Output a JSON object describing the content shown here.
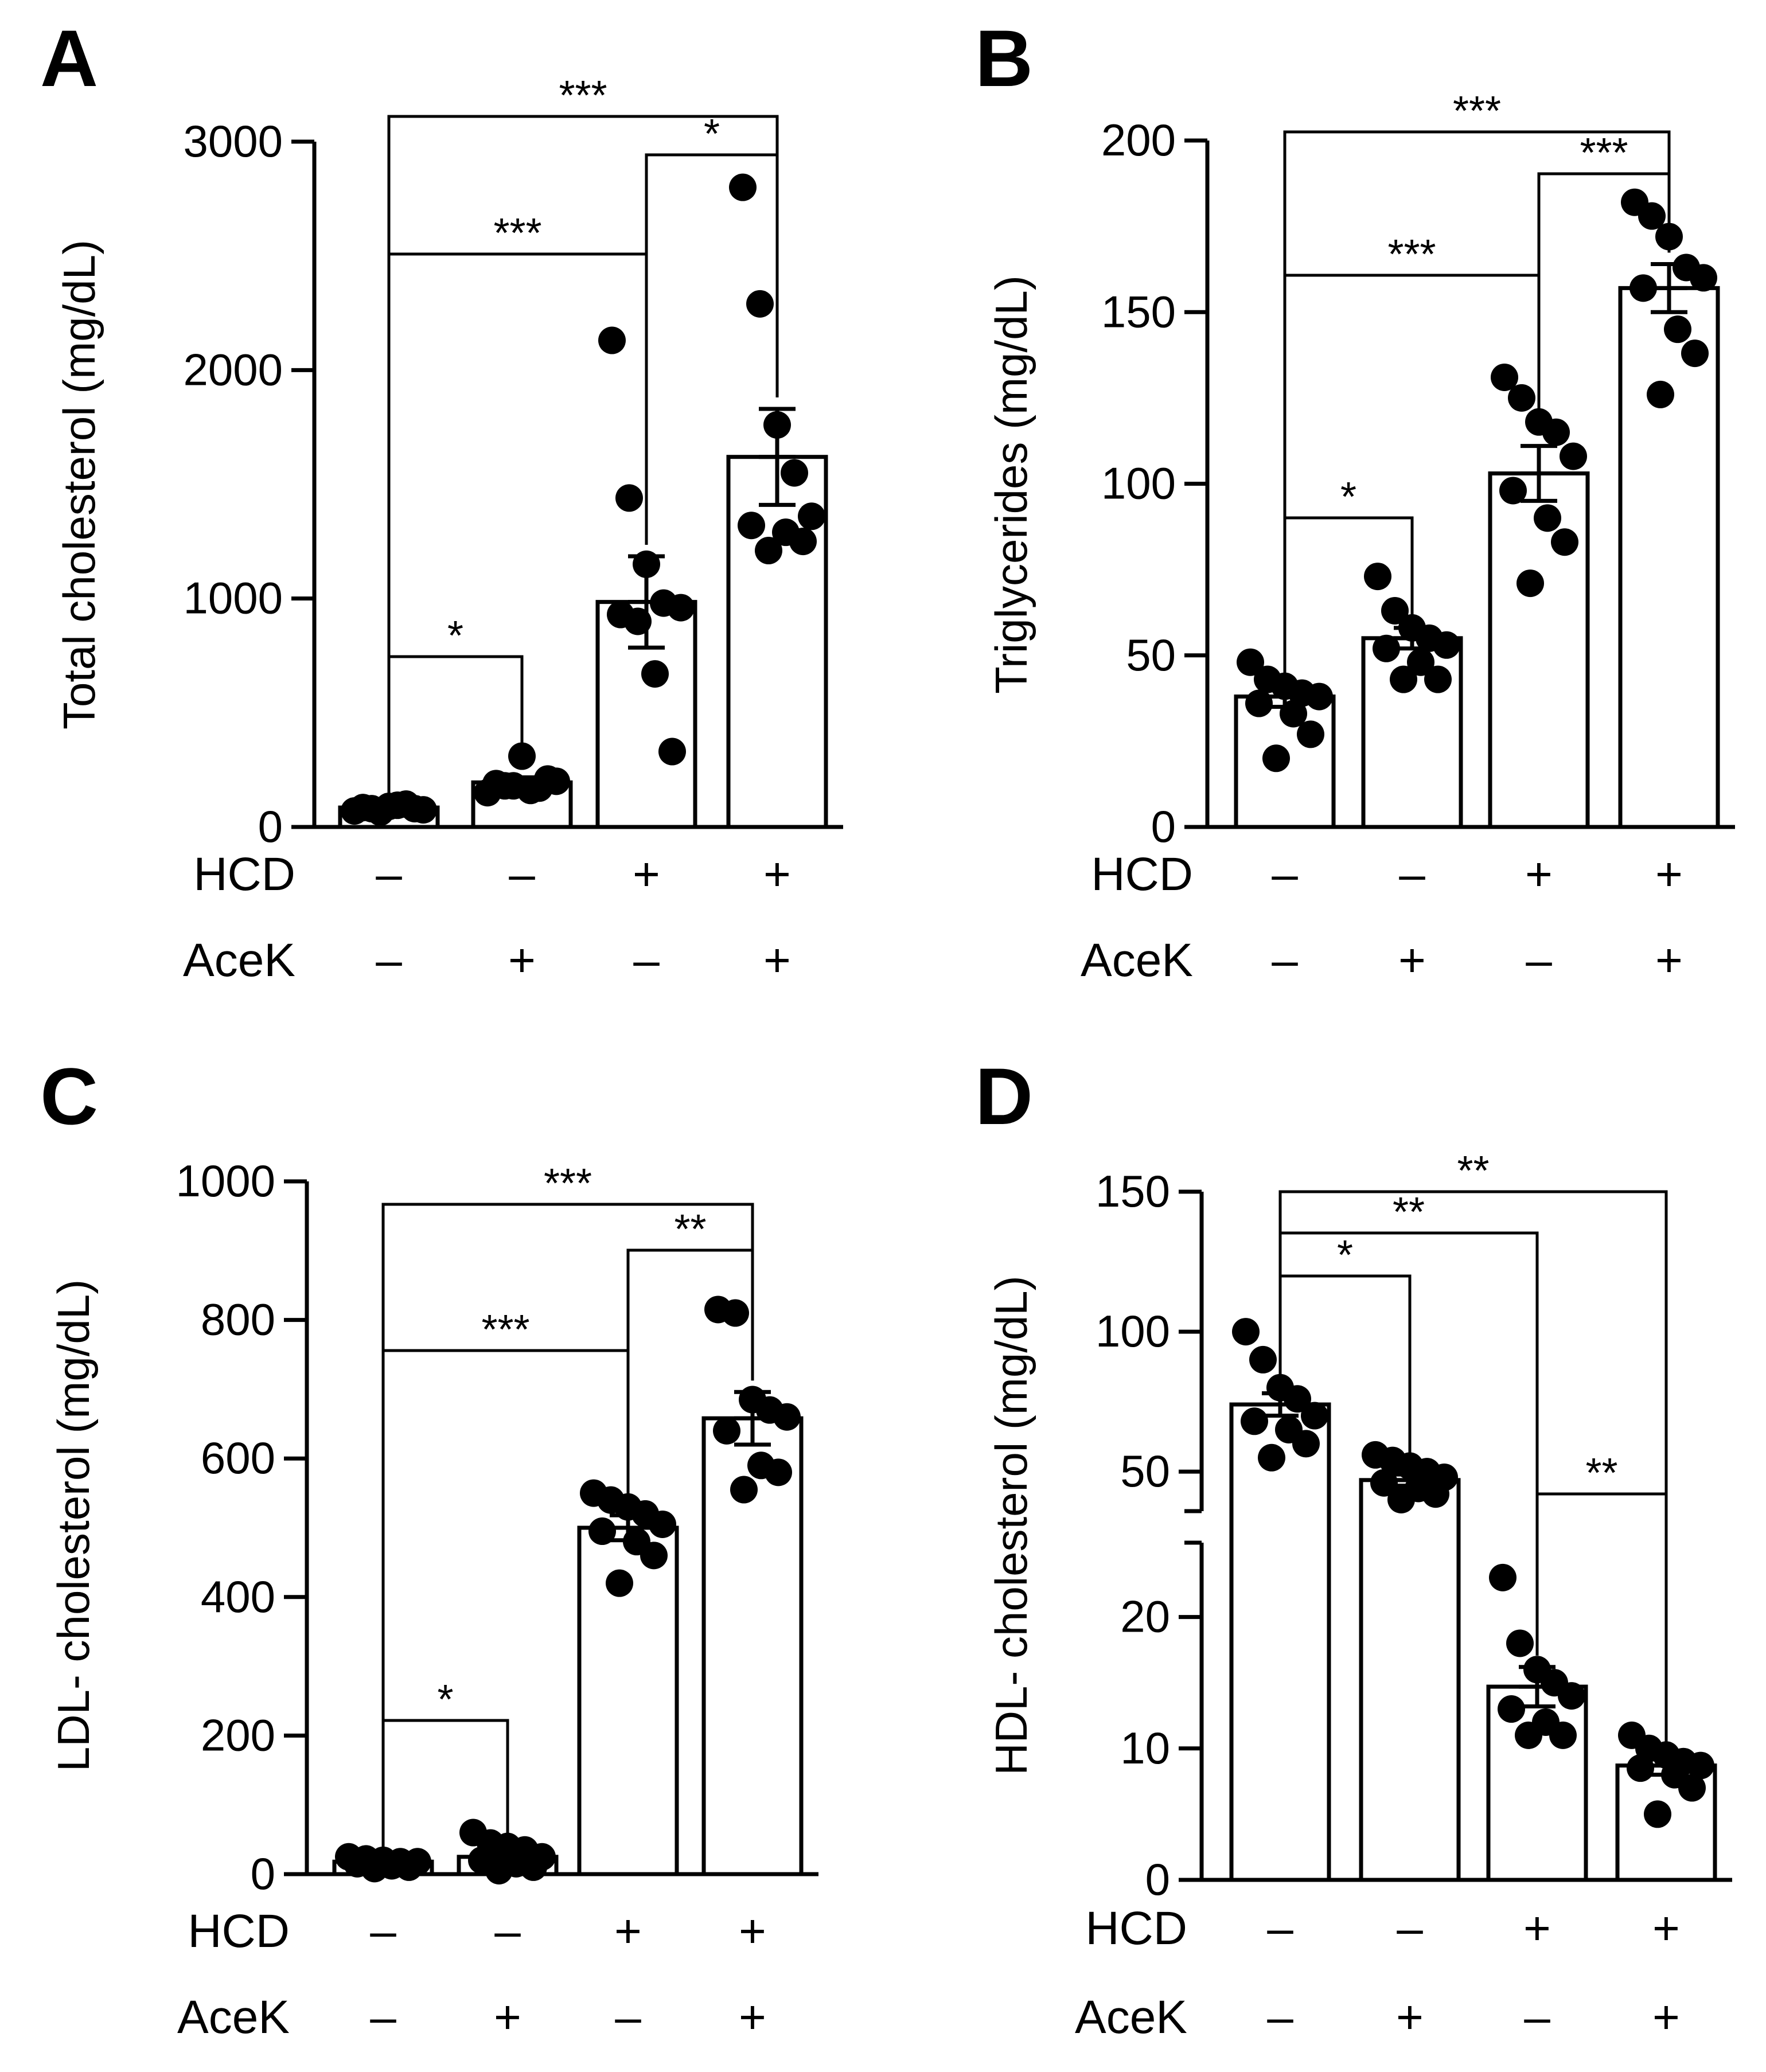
{
  "chart_data": [
    {
      "panel": "A",
      "type": "bar",
      "ylabel": "Total cholesterol (mg/dL)",
      "ylim": [
        0,
        3000
      ],
      "yticks": [
        "0",
        "1000",
        "2000",
        "3000"
      ],
      "row_labels": [
        "HCD",
        "AceK"
      ],
      "group_signs": [
        [
          "–",
          "–"
        ],
        [
          "–",
          "+"
        ],
        [
          "+",
          "–"
        ],
        [
          "+",
          "+"
        ]
      ],
      "values": [
        85,
        195,
        985,
        1620
      ],
      "sem": [
        10,
        22,
        200,
        210
      ],
      "points": [
        [
          70,
          80,
          90,
          100,
          75,
          85,
          95,
          80,
          65
        ],
        [
          150,
          180,
          310,
          170,
          200,
          190,
          160,
          210,
          180
        ],
        [
          2130,
          1440,
          1150,
          980,
          960,
          930,
          670,
          330,
          900
        ],
        [
          2800,
          2290,
          1760,
          1550,
          1360,
          1320,
          1290,
          1250,
          1210
        ]
      ],
      "comparisons": [
        {
          "from": 0,
          "to": 3,
          "label": "***"
        },
        {
          "from": 2,
          "to": 3,
          "label": "*"
        },
        {
          "from": 0,
          "to": 2,
          "label": "***"
        },
        {
          "from": 0,
          "to": 1,
          "label": "*"
        }
      ]
    },
    {
      "panel": "B",
      "type": "bar",
      "ylabel": "Triglycerides (mg/dL)",
      "ylim": [
        0,
        200
      ],
      "yticks": [
        "0",
        "50",
        "100",
        "150",
        "200"
      ],
      "row_labels": [
        "HCD",
        "AceK"
      ],
      "group_signs": [
        [
          "–",
          "–"
        ],
        [
          "–",
          "+"
        ],
        [
          "+",
          "–"
        ],
        [
          "+",
          "+"
        ]
      ],
      "values": [
        38,
        55,
        103,
        157
      ],
      "sem": [
        3,
        3,
        8,
        7
      ],
      "points": [
        [
          48,
          43,
          41,
          39,
          38,
          36,
          33,
          27,
          20
        ],
        [
          73,
          63,
          58,
          55,
          53,
          52,
          48,
          43,
          43
        ],
        [
          131,
          125,
          118,
          115,
          108,
          98,
          90,
          83,
          71
        ],
        [
          182,
          178,
          172,
          163,
          160,
          157,
          145,
          138,
          126
        ]
      ],
      "comparisons": [
        {
          "from": 0,
          "to": 3,
          "label": "***"
        },
        {
          "from": 2,
          "to": 3,
          "label": "***"
        },
        {
          "from": 0,
          "to": 2,
          "label": "***"
        },
        {
          "from": 0,
          "to": 1,
          "label": "*"
        }
      ]
    },
    {
      "panel": "C",
      "type": "bar",
      "ylabel": "LDL- cholesterol (mg/dL)",
      "ylim": [
        0,
        1000
      ],
      "yticks": [
        "0",
        "200",
        "400",
        "600",
        "800",
        "1000"
      ],
      "row_labels": [
        "HCD",
        "AceK"
      ],
      "group_signs": [
        [
          "–",
          "–"
        ],
        [
          "–",
          "+"
        ],
        [
          "+",
          "–"
        ],
        [
          "+",
          "+"
        ]
      ],
      "values": [
        18,
        25,
        500,
        658
      ],
      "sem": [
        3,
        7,
        18,
        38
      ],
      "points": [
        [
          25,
          22,
          20,
          18,
          18,
          15,
          12,
          10,
          8
        ],
        [
          60,
          45,
          40,
          35,
          25,
          20,
          15,
          10,
          5
        ],
        [
          550,
          540,
          530,
          520,
          505,
          495,
          480,
          460,
          420
        ],
        [
          815,
          810,
          685,
          670,
          660,
          640,
          590,
          580,
          555
        ]
      ],
      "comparisons": [
        {
          "from": 0,
          "to": 3,
          "label": "***"
        },
        {
          "from": 2,
          "to": 3,
          "label": "**"
        },
        {
          "from": 0,
          "to": 2,
          "label": "***"
        },
        {
          "from": 0,
          "to": 1,
          "label": "*"
        }
      ]
    },
    {
      "panel": "D",
      "type": "bar",
      "ylabel": "HDL- cholesterol (mg/dL)",
      "ylim": [
        0,
        150
      ],
      "axis_break": [
        25,
        40
      ],
      "yticks": [
        "0",
        "10",
        "20",
        "50",
        "100",
        "150"
      ],
      "row_labels": [
        "HCD",
        "AceK"
      ],
      "group_signs": [
        [
          "–",
          "–"
        ],
        [
          "–",
          "+"
        ],
        [
          "+",
          "–"
        ],
        [
          "+",
          "+"
        ]
      ],
      "values": [
        74,
        47,
        14.7,
        8.7
      ],
      "sem": [
        4,
        2,
        1.5,
        0.7
      ],
      "points": [
        [
          100,
          90,
          80,
          76,
          70,
          68,
          65,
          60,
          55
        ],
        [
          56,
          54,
          52,
          50,
          48,
          46,
          44,
          42,
          40
        ],
        [
          23,
          18,
          16,
          15,
          14,
          13,
          12,
          11,
          11
        ],
        [
          11,
          10,
          9.5,
          9,
          8.7,
          8.5,
          8,
          7,
          5
        ]
      ],
      "comparisons": [
        {
          "from": 0,
          "to": 3,
          "label": "**"
        },
        {
          "from": 0,
          "to": 2,
          "label": "**"
        },
        {
          "from": 0,
          "to": 1,
          "label": "*"
        },
        {
          "from": 2,
          "to": 3,
          "label": "**"
        }
      ]
    }
  ]
}
